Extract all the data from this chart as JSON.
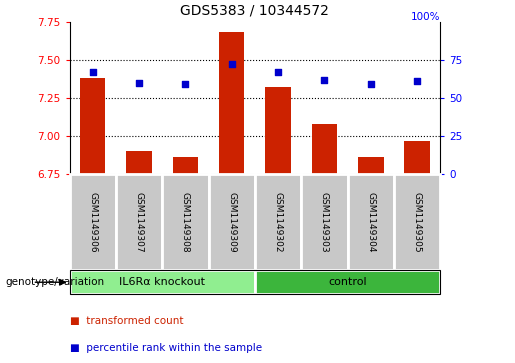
{
  "title": "GDS5383 / 10344572",
  "samples": [
    "GSM1149306",
    "GSM1149307",
    "GSM1149308",
    "GSM1149309",
    "GSM1149302",
    "GSM1149303",
    "GSM1149304",
    "GSM1149305"
  ],
  "bar_values": [
    7.38,
    6.9,
    6.86,
    7.68,
    7.32,
    7.08,
    6.86,
    6.97
  ],
  "scatter_values": [
    67,
    60,
    59,
    72,
    67,
    62,
    59,
    61
  ],
  "groups": [
    {
      "label": "IL6Rα knockout",
      "start": 0,
      "end": 4,
      "color": "#90ee90"
    },
    {
      "label": "control",
      "start": 4,
      "end": 8,
      "color": "#3cb53c"
    }
  ],
  "ylim_left": [
    6.75,
    7.75
  ],
  "ylim_right": [
    0,
    100
  ],
  "yticks_left": [
    6.75,
    7.0,
    7.25,
    7.5,
    7.75
  ],
  "yticks_right": [
    0,
    25,
    50,
    75,
    100
  ],
  "bar_color": "#cc2200",
  "scatter_color": "#0000cc",
  "bar_bottom": 6.75,
  "scatter_marker": "s",
  "scatter_size": 20,
  "grid_linestyle": "dotted",
  "sample_area_bg": "#c8c8c8",
  "legend_red_label": "transformed count",
  "legend_blue_label": "percentile rank within the sample",
  "genotype_label": "genotype/variation"
}
